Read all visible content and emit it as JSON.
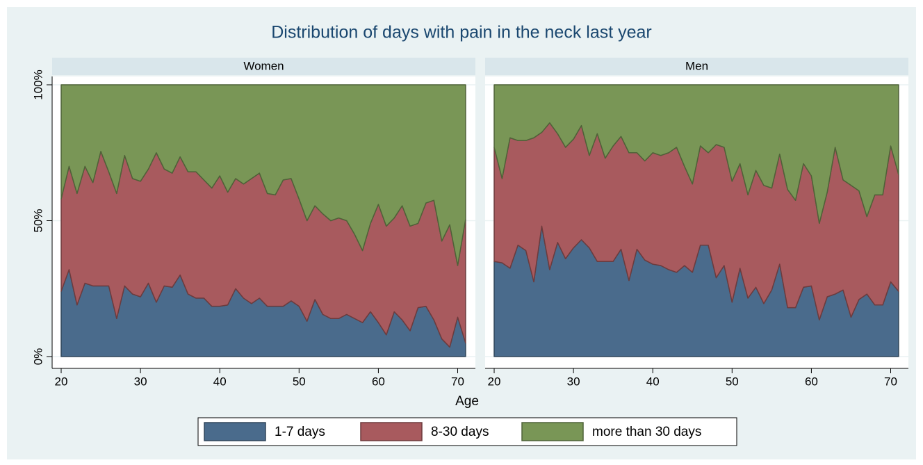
{
  "chart_data": {
    "type": "stacked-area",
    "title": "Distribution of days with pain in the neck last year",
    "xlabel": "Age",
    "x": [
      20,
      21,
      22,
      23,
      24,
      25,
      26,
      27,
      28,
      29,
      30,
      31,
      32,
      33,
      34,
      35,
      36,
      37,
      38,
      39,
      40,
      41,
      42,
      43,
      44,
      45,
      46,
      47,
      48,
      49,
      50,
      51,
      52,
      53,
      54,
      55,
      56,
      57,
      58,
      59,
      60,
      61,
      62,
      63,
      64,
      65,
      66,
      67,
      68,
      69,
      70,
      71
    ],
    "xlim": [
      19,
      72
    ],
    "xticks": [
      20,
      30,
      40,
      50,
      60,
      70
    ],
    "ylim": [
      0,
      100
    ],
    "yticks": [
      {
        "value": 0,
        "label": "0%"
      },
      {
        "value": 50,
        "label": "50%"
      },
      {
        "value": 100,
        "label": "100%"
      }
    ],
    "grid": true,
    "legend": "bottom",
    "series": [
      {
        "name": "1-7 days",
        "color": "#4a6b8c"
      },
      {
        "name": "8-30 days",
        "color": "#a85a5e"
      },
      {
        "name": "more than 30 days",
        "color": "#799656"
      }
    ],
    "panels": [
      {
        "title": "Women",
        "values": [
          [
            24,
            32,
            19,
            27,
            26,
            26,
            26,
            14,
            26,
            23,
            22,
            27,
            20,
            26,
            25.5,
            30,
            23,
            21.5,
            21.5,
            18.5,
            18.5,
            19,
            25,
            21.5,
            19.5,
            21.5,
            18.5,
            18.5,
            18.5,
            20.5,
            18.5,
            13,
            21,
            15.5,
            14,
            14,
            15.5,
            14,
            12.5,
            16.5,
            12.5,
            8,
            16.5,
            13.5,
            9.5,
            18,
            18.5,
            13.5,
            6.5,
            3.5,
            14.5,
            5
          ],
          [
            34,
            38,
            41,
            43,
            38,
            49.5,
            42,
            46,
            48,
            42.5,
            42.5,
            42,
            55,
            43,
            42,
            43.5,
            45,
            46.5,
            43.5,
            43.5,
            48,
            41.5,
            40.5,
            42,
            46,
            46,
            41.5,
            41,
            46.5,
            45,
            39.5,
            37,
            34.5,
            37,
            36,
            37,
            34.5,
            31,
            26.5,
            32.5,
            43.5,
            40,
            34.5,
            42,
            38.5,
            31,
            38,
            44,
            36,
            45,
            19,
            45.5
          ],
          [
            42,
            30,
            40,
            30,
            36,
            24.5,
            32,
            40,
            26,
            34.5,
            35.5,
            31,
            25,
            31,
            32.5,
            26.5,
            32,
            32,
            35,
            38,
            33.5,
            39.5,
            34.5,
            36.5,
            34.5,
            32.5,
            40,
            40.5,
            35,
            34.5,
            42,
            50,
            44.5,
            47.5,
            50,
            49,
            50,
            55,
            61,
            51,
            44,
            52,
            49,
            44.5,
            52,
            51,
            43.5,
            42.5,
            57.5,
            51.5,
            66.5,
            49.5
          ]
        ]
      },
      {
        "title": "Men",
        "values": [
          [
            35,
            34.5,
            32.5,
            41,
            39,
            27.5,
            48,
            32,
            42,
            36,
            40,
            43,
            40,
            35,
            35,
            35,
            39.5,
            28,
            39.5,
            35.5,
            34,
            33.5,
            32,
            31,
            33.5,
            31,
            41,
            41,
            29,
            33.5,
            20,
            32.5,
            21.5,
            25.5,
            19.5,
            24.5,
            34,
            18,
            18,
            25.5,
            26,
            13.5,
            22,
            23,
            24.5,
            14.5,
            21,
            23,
            19,
            19,
            27.5,
            24
          ],
          [
            42,
            31,
            48,
            38.5,
            40.5,
            53,
            34.5,
            54,
            40,
            41,
            40,
            42,
            34,
            47,
            38,
            42.5,
            41.5,
            47,
            35.5,
            36.5,
            41,
            40.5,
            43,
            46,
            36.5,
            32.5,
            36.5,
            34,
            49,
            43.5,
            44.5,
            38.5,
            38,
            43,
            43.5,
            37.5,
            40.5,
            43.5,
            39.5,
            45.5,
            40.5,
            35.5,
            38.5,
            54,
            40.5,
            48.5,
            40,
            28.5,
            40.5,
            40.5,
            50,
            43
          ],
          [
            23,
            34.5,
            19.5,
            20.5,
            20.5,
            19.5,
            17.5,
            14,
            18,
            23,
            20,
            15,
            26,
            18,
            27,
            22.5,
            19,
            25,
            25,
            28,
            25,
            26,
            25,
            23,
            30,
            36.5,
            22.5,
            25,
            22,
            23,
            35.5,
            29,
            40.5,
            31.5,
            37,
            38,
            25.5,
            38.5,
            42.5,
            29,
            33.5,
            51,
            39.5,
            23,
            35,
            37,
            39,
            48.5,
            40.5,
            40.5,
            22.5,
            33
          ]
        ]
      }
    ]
  }
}
